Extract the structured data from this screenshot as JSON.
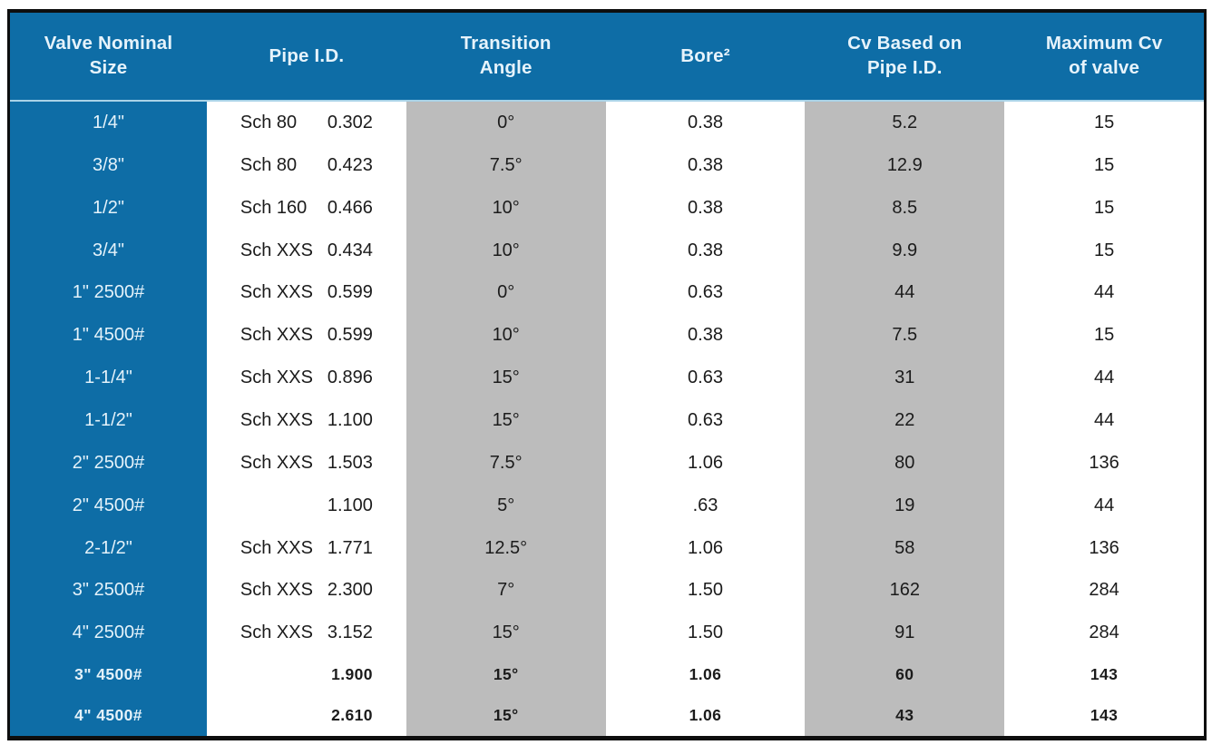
{
  "table": {
    "columns": [
      {
        "label": "Valve Nominal Size"
      },
      {
        "label": "Pipe I.D."
      },
      {
        "label": "Transition Angle"
      },
      {
        "label": "Bore²"
      },
      {
        "label": "Cv Based on Pipe I.D."
      },
      {
        "label": "Maximum Cv of valve"
      }
    ],
    "rows": [
      {
        "size": "1/4\"",
        "sch": "Sch 80",
        "pipe_id": "0.302",
        "angle": "0°",
        "bore": "0.38",
        "cv_pipe": "5.2",
        "max_cv": "15",
        "alt": false
      },
      {
        "size": "3/8\"",
        "sch": "Sch 80",
        "pipe_id": "0.423",
        "angle": "7.5°",
        "bore": "0.38",
        "cv_pipe": "12.9",
        "max_cv": "15",
        "alt": false
      },
      {
        "size": "1/2\"",
        "sch": "Sch 160",
        "pipe_id": "0.466",
        "angle": "10°",
        "bore": "0.38",
        "cv_pipe": "8.5",
        "max_cv": "15",
        "alt": false
      },
      {
        "size": "3/4\"",
        "sch": "Sch XXS",
        "pipe_id": "0.434",
        "angle": "10°",
        "bore": "0.38",
        "cv_pipe": "9.9",
        "max_cv": "15",
        "alt": false
      },
      {
        "size": "1\" 2500#",
        "sch": "Sch XXS",
        "pipe_id": "0.599",
        "angle": "0°",
        "bore": "0.63",
        "cv_pipe": "44",
        "max_cv": "44",
        "alt": false
      },
      {
        "size": "1\" 4500#",
        "sch": "Sch XXS",
        "pipe_id": "0.599",
        "angle": "10°",
        "bore": "0.38",
        "cv_pipe": "7.5",
        "max_cv": "15",
        "alt": false
      },
      {
        "size": "1-1/4\"",
        "sch": "Sch XXS",
        "pipe_id": "0.896",
        "angle": "15°",
        "bore": "0.63",
        "cv_pipe": "31",
        "max_cv": "44",
        "alt": false
      },
      {
        "size": "1-1/2\"",
        "sch": "Sch XXS",
        "pipe_id": "1.100",
        "angle": "15°",
        "bore": "0.63",
        "cv_pipe": "22",
        "max_cv": "44",
        "alt": false
      },
      {
        "size": "2\" 2500#",
        "sch": "Sch XXS",
        "pipe_id": "1.503",
        "angle": "7.5°",
        "bore": "1.06",
        "cv_pipe": "80",
        "max_cv": "136",
        "alt": false
      },
      {
        "size": "2\" 4500#",
        "sch": "",
        "pipe_id": "1.100",
        "angle": "5°",
        "bore": ".63",
        "cv_pipe": "19",
        "max_cv": "44",
        "alt": false
      },
      {
        "size": "2-1/2\"",
        "sch": "Sch XXS",
        "pipe_id": "1.771",
        "angle": "12.5°",
        "bore": "1.06",
        "cv_pipe": "58",
        "max_cv": "136",
        "alt": false
      },
      {
        "size": "3\" 2500#",
        "sch": "Sch XXS",
        "pipe_id": "2.300",
        "angle": "7°",
        "bore": "1.50",
        "cv_pipe": "162",
        "max_cv": "284",
        "alt": false
      },
      {
        "size": "4\" 2500#",
        "sch": "Sch XXS",
        "pipe_id": "3.152",
        "angle": "15°",
        "bore": "1.50",
        "cv_pipe": "91",
        "max_cv": "284",
        "alt": false
      },
      {
        "size": "3\" 4500#",
        "sch": "",
        "pipe_id": "1.900",
        "angle": "15°",
        "bore": "1.06",
        "cv_pipe": "60",
        "max_cv": "143",
        "alt": true
      },
      {
        "size": "4\" 4500#",
        "sch": "",
        "pipe_id": "2.610",
        "angle": "15°",
        "bore": "1.06",
        "cv_pipe": "43",
        "max_cv": "143",
        "alt": true
      }
    ],
    "colors": {
      "header_blue": "#0e6da6",
      "band_gray": "#bcbcbc",
      "border_black": "#0e0e0e",
      "header_text": "#e6f3fb",
      "body_text": "#1b1b1b"
    }
  }
}
